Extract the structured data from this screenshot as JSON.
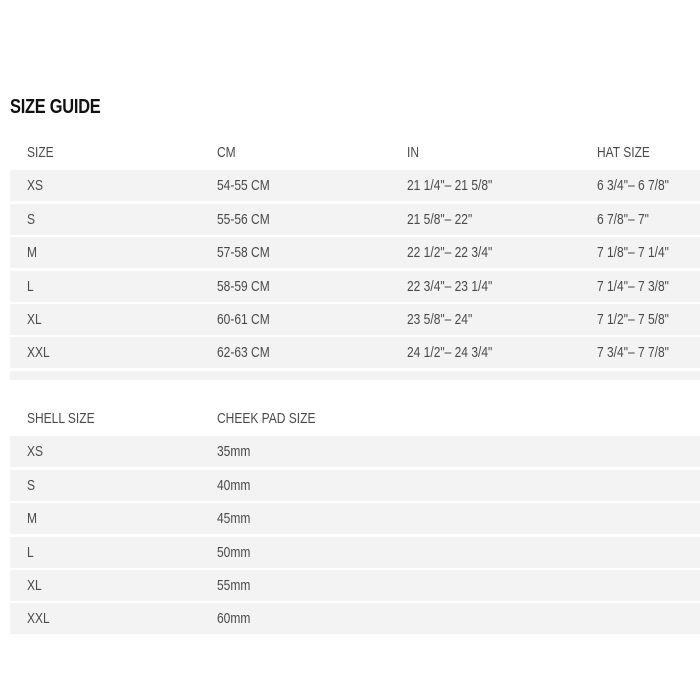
{
  "title": "SIZE GUIDE",
  "size_table": {
    "headers": [
      "SIZE",
      "CM",
      "IN",
      "HAT SIZE"
    ],
    "rows": [
      [
        "XS",
        "54-55 CM",
        "21 1/4\"– 21 5/8\"",
        "6 3/4\"– 6 7/8\""
      ],
      [
        "S",
        "55-56 CM",
        "21 5/8\"– 22\"",
        "6 7/8\"– 7\""
      ],
      [
        "M",
        "57-58 CM",
        "22 1/2\"– 22 3/4\"",
        "7 1/8\"– 7 1/4\""
      ],
      [
        "L",
        "58-59 CM",
        "22 3/4\"– 23 1/4\"",
        "7 1/4\"– 7 3/8\""
      ],
      [
        "XL",
        "60-61 CM",
        "23 5/8\"– 24\"",
        "7 1/2\"– 7 5/8\""
      ],
      [
        "XXL",
        "62-63 CM",
        "24 1/2\"– 24 3/4\"",
        "7 3/4\"– 7 7/8\""
      ]
    ]
  },
  "shell_table": {
    "headers": [
      "SHELL SIZE",
      "CHEEK PAD SIZE"
    ],
    "rows": [
      [
        "XS",
        "35mm"
      ],
      [
        "S",
        "40mm"
      ],
      [
        "M",
        "45mm"
      ],
      [
        "L",
        "50mm"
      ],
      [
        "XL",
        "55mm"
      ],
      [
        "XXL",
        "60mm"
      ]
    ]
  }
}
